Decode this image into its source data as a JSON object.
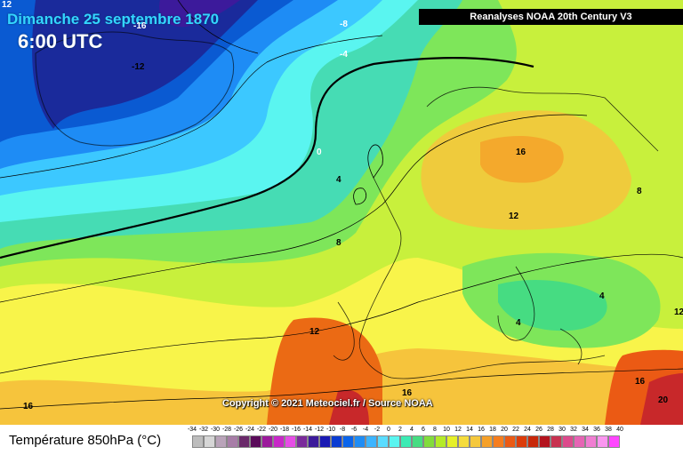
{
  "header": {
    "date": "Dimanche 25 septembre 1870",
    "time": "6:00 UTC"
  },
  "source_label": "Reanalyses NOAA 20th Century V3",
  "copyright": "Copyright © 2021 Meteociel.fr / Source NOAA",
  "legend": {
    "title": "Température 850hPa (°C)",
    "ticks": [
      "-34",
      "-32",
      "-30",
      "-28",
      "-26",
      "-24",
      "-22",
      "-20",
      "-18",
      "-16",
      "-14",
      "-12",
      "-10",
      "-8",
      "-6",
      "-4",
      "-2",
      "0",
      "2",
      "4",
      "6",
      "8",
      "10",
      "12",
      "14",
      "16",
      "18",
      "20",
      "22",
      "24",
      "26",
      "28",
      "30",
      "32",
      "34",
      "36",
      "38",
      "40"
    ],
    "colors": [
      "#bdbdbd",
      "#d6d6d6",
      "#b9a3b9",
      "#a77da7",
      "#6b2a6b",
      "#5a0a5a",
      "#9c1a9c",
      "#c828c8",
      "#e64de6",
      "#7a2b9b",
      "#3c1a9b",
      "#1a1ab4",
      "#0a3cd2",
      "#0a64eb",
      "#1e8cf5",
      "#3cb4ff",
      "#5adcff",
      "#5af5f0",
      "#3cebb4",
      "#46dc82",
      "#82dc3c",
      "#b4eb28",
      "#e6f028",
      "#f5dc3c",
      "#f5c83c",
      "#f5a028",
      "#f57d1e",
      "#eb5a14",
      "#dc3c0a",
      "#c8280a",
      "#b4141e",
      "#c83250",
      "#dc4b8c",
      "#e664b4",
      "#f07dd2",
      "#fa96f0",
      "#ff46ff"
    ]
  },
  "isotherm_labels": [
    {
      "text": "-16"
    },
    {
      "text": "-8"
    },
    {
      "text": "-4"
    },
    {
      "text": "-12"
    },
    {
      "text": "0"
    },
    {
      "text": "4"
    },
    {
      "text": "8"
    },
    {
      "text": "16"
    },
    {
      "text": "12"
    },
    {
      "text": "8"
    },
    {
      "text": "4"
    },
    {
      "text": "4"
    },
    {
      "text": "12"
    },
    {
      "text": "16"
    },
    {
      "text": "16"
    },
    {
      "text": "16"
    },
    {
      "text": "20"
    },
    {
      "text": "12"
    },
    {
      "text": "12"
    }
  ],
  "colors": {
    "deep_blue": "#1a2a9b",
    "blue": "#0a5ad2",
    "cyan": "#3cc8ff",
    "green": "#46dc82",
    "yellow": "#f0f03c",
    "orange": "#f5a028",
    "red": "#dc3c0a"
  }
}
